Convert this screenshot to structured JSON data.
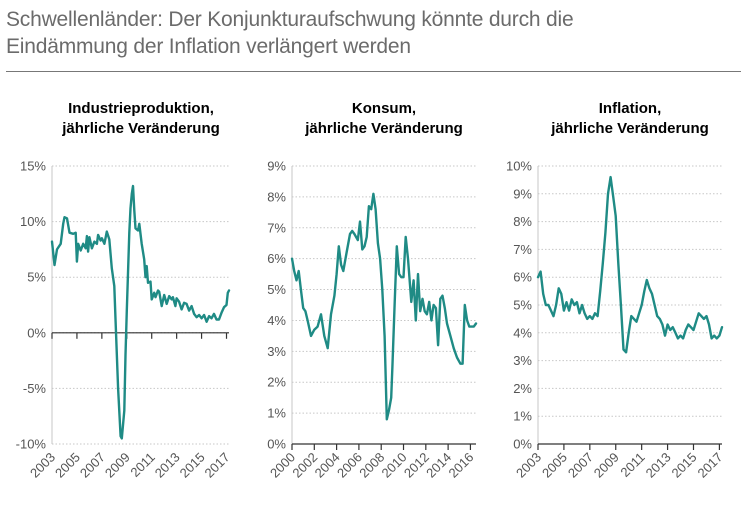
{
  "title_line1": "Schwellenländer: Der Konjunkturaufschwung könnte durch die",
  "title_line2": "Eindämmung der Inflation verlängert werden",
  "colors": {
    "series": "#1f8b85",
    "grid": "#c7c7c7",
    "axis": "#333333",
    "text": "#555555"
  },
  "chart_data": [
    {
      "type": "line",
      "title": [
        "Industrieproduktion,",
        "jährliche Veränderung"
      ],
      "ylim": [
        -10,
        15
      ],
      "yticks": [
        -10,
        -5,
        0,
        5,
        10,
        15
      ],
      "ytick_labels": [
        "-10%",
        "-5%",
        "0%",
        "5%",
        "10%",
        "15%"
      ],
      "xlim": [
        2003,
        2017.2
      ],
      "xticks": [
        2003,
        2005,
        2007,
        2009,
        2011,
        2013,
        2015,
        2017
      ],
      "xtick_labels": [
        "2003",
        "2005",
        "2007",
        "2009",
        "2011",
        "2013",
        "2015",
        "2017"
      ],
      "grid": "horizontal",
      "x_axis_at": 0,
      "series": [
        {
          "x": [
            2003.0,
            2003.2,
            2003.4,
            2003.7,
            2003.9,
            2004.0,
            2004.2,
            2004.4,
            2004.7,
            2004.9,
            2005.0,
            2005.1,
            2005.3,
            2005.5,
            2005.7,
            2005.8,
            2005.9,
            2006.0,
            2006.2,
            2006.4,
            2006.6,
            2006.7,
            2006.9,
            2007.0,
            2007.2,
            2007.4,
            2007.6,
            2007.8,
            2008.0,
            2008.1,
            2008.3,
            2008.5,
            2008.6,
            2008.8,
            2008.9,
            2009.0,
            2009.2,
            2009.3,
            2009.4,
            2009.5,
            2009.6,
            2009.7,
            2009.9,
            2010.0,
            2010.2,
            2010.4,
            2010.5,
            2010.6,
            2010.7,
            2010.9,
            2011.0,
            2011.2,
            2011.3,
            2011.5,
            2011.6,
            2011.8,
            2012.0,
            2012.2,
            2012.4,
            2012.6,
            2012.7,
            2012.9,
            2013.0,
            2013.2,
            2013.4,
            2013.6,
            2013.8,
            2014.0,
            2014.2,
            2014.4,
            2014.6,
            2014.8,
            2015.0,
            2015.2,
            2015.4,
            2015.6,
            2015.8,
            2016.0,
            2016.2,
            2016.4,
            2016.6,
            2016.8,
            2017.0,
            2017.1,
            2017.2
          ],
          "y": [
            8.2,
            6.1,
            7.5,
            8.0,
            9.8,
            10.4,
            10.3,
            9.0,
            8.9,
            9.0,
            6.4,
            8.0,
            7.4,
            8.0,
            7.6,
            8.7,
            7.3,
            8.6,
            7.6,
            8.2,
            8.0,
            8.8,
            8.3,
            8.5,
            8.0,
            9.1,
            8.4,
            5.8,
            4.2,
            1.0,
            -5.0,
            -9.3,
            -9.5,
            -7.0,
            -2.0,
            2.0,
            9.0,
            11.2,
            12.5,
            13.2,
            11.0,
            9.4,
            9.2,
            9.8,
            8.0,
            6.6,
            5.0,
            6.0,
            4.5,
            4.6,
            3.0,
            3.6,
            3.2,
            3.8,
            3.7,
            2.4,
            3.4,
            2.6,
            3.3,
            3.0,
            3.2,
            2.4,
            3.1,
            2.8,
            2.1,
            2.7,
            2.6,
            2.0,
            2.4,
            1.7,
            1.4,
            1.6,
            1.3,
            1.6,
            1.0,
            1.5,
            1.3,
            1.7,
            1.2,
            1.2,
            1.8,
            2.3,
            2.5,
            3.6,
            3.8
          ]
        }
      ]
    },
    {
      "type": "line",
      "title": [
        "Konsum,",
        "jährliche Veränderung"
      ],
      "ylim": [
        0,
        9
      ],
      "yticks": [
        0,
        1,
        2,
        3,
        4,
        5,
        6,
        7,
        8,
        9
      ],
      "ytick_labels": [
        "0%",
        "1%",
        "2%",
        "3%",
        "4%",
        "5%",
        "6%",
        "7%",
        "8%",
        "9%"
      ],
      "xlim": [
        2000,
        2016.5
      ],
      "xticks": [
        2000,
        2002,
        2004,
        2006,
        2008,
        2010,
        2012,
        2014,
        2016
      ],
      "xtick_labels": [
        "2000",
        "2002",
        "2004",
        "2006",
        "2008",
        "2010",
        "2012",
        "2014",
        "2016"
      ],
      "grid": "horizontal",
      "x_axis_at": 0,
      "series": [
        {
          "x": [
            2000.0,
            2000.2,
            2000.4,
            2000.6,
            2000.8,
            2001.0,
            2001.2,
            2001.4,
            2001.7,
            2002.0,
            2002.3,
            2002.6,
            2002.9,
            2003.2,
            2003.5,
            2003.8,
            2004.0,
            2004.2,
            2004.4,
            2004.6,
            2004.9,
            2005.2,
            2005.4,
            2005.6,
            2005.9,
            2006.1,
            2006.3,
            2006.5,
            2006.7,
            2006.9,
            2007.1,
            2007.3,
            2007.5,
            2007.7,
            2007.9,
            2008.1,
            2008.3,
            2008.5,
            2008.7,
            2008.9,
            2009.0,
            2009.2,
            2009.4,
            2009.6,
            2009.8,
            2010.0,
            2010.2,
            2010.4,
            2010.7,
            2010.9,
            2011.1,
            2011.3,
            2011.5,
            2011.7,
            2011.9,
            2012.1,
            2012.3,
            2012.5,
            2012.7,
            2012.9,
            2013.1,
            2013.3,
            2013.5,
            2013.7,
            2013.9,
            2014.2,
            2014.5,
            2014.8,
            2015.1,
            2015.3,
            2015.5,
            2015.7,
            2015.9,
            2016.1,
            2016.3,
            2016.5
          ],
          "y": [
            6.0,
            5.6,
            5.3,
            5.6,
            5.0,
            4.4,
            4.3,
            4.0,
            3.5,
            3.7,
            3.8,
            4.2,
            3.5,
            3.1,
            4.2,
            4.8,
            5.5,
            6.4,
            5.8,
            5.6,
            6.2,
            6.8,
            6.9,
            6.8,
            6.6,
            7.2,
            6.3,
            6.4,
            6.7,
            7.7,
            7.6,
            8.1,
            7.6,
            6.5,
            6.0,
            5.0,
            3.5,
            0.8,
            1.1,
            1.5,
            2.5,
            4.5,
            6.4,
            5.5,
            5.4,
            5.4,
            6.7,
            6.0,
            4.6,
            5.3,
            4.0,
            5.5,
            4.3,
            4.7,
            4.3,
            4.2,
            4.6,
            4.0,
            4.5,
            4.4,
            3.2,
            4.7,
            4.8,
            4.4,
            3.9,
            3.5,
            3.1,
            2.8,
            2.6,
            2.6,
            4.5,
            4.0,
            3.8,
            3.8,
            3.8,
            3.9
          ]
        }
      ]
    },
    {
      "type": "line",
      "title": [
        "Inflation,",
        "jährliche Veränderung"
      ],
      "ylim": [
        0,
        10
      ],
      "yticks": [
        0,
        1,
        2,
        3,
        4,
        5,
        6,
        7,
        8,
        9,
        10
      ],
      "ytick_labels": [
        "0%",
        "1%",
        "2%",
        "3%",
        "4%",
        "5%",
        "6%",
        "7%",
        "8%",
        "9%",
        "10%"
      ],
      "xlim": [
        2003,
        2017.2
      ],
      "xticks": [
        2003,
        2005,
        2007,
        2009,
        2011,
        2013,
        2015,
        2017
      ],
      "xtick_labels": [
        "2003",
        "2005",
        "2007",
        "2009",
        "2011",
        "2013",
        "2015",
        "2017"
      ],
      "grid": "horizontal",
      "x_axis_at": 0,
      "series": [
        {
          "x": [
            2003.0,
            2003.2,
            2003.4,
            2003.6,
            2003.8,
            2004.0,
            2004.2,
            2004.4,
            2004.6,
            2004.8,
            2005.0,
            2005.2,
            2005.4,
            2005.6,
            2005.8,
            2006.0,
            2006.2,
            2006.4,
            2006.6,
            2006.8,
            2007.0,
            2007.2,
            2007.4,
            2007.6,
            2007.8,
            2008.0,
            2008.2,
            2008.4,
            2008.6,
            2008.8,
            2009.0,
            2009.2,
            2009.4,
            2009.6,
            2009.8,
            2010.0,
            2010.2,
            2010.4,
            2010.6,
            2010.8,
            2011.0,
            2011.2,
            2011.4,
            2011.6,
            2011.8,
            2012.0,
            2012.2,
            2012.4,
            2012.6,
            2012.8,
            2013.0,
            2013.2,
            2013.4,
            2013.6,
            2013.8,
            2014.0,
            2014.2,
            2014.4,
            2014.6,
            2014.8,
            2015.0,
            2015.2,
            2015.4,
            2015.6,
            2015.8,
            2016.0,
            2016.2,
            2016.4,
            2016.6,
            2016.8,
            2017.0,
            2017.2
          ],
          "y": [
            6.0,
            6.2,
            5.4,
            5.0,
            5.0,
            4.8,
            4.6,
            5.0,
            5.6,
            5.4,
            4.8,
            5.1,
            4.8,
            5.2,
            5.0,
            5.1,
            4.7,
            5.0,
            4.7,
            4.5,
            4.6,
            4.5,
            4.7,
            4.6,
            5.5,
            6.5,
            7.6,
            9.0,
            9.6,
            8.9,
            8.2,
            6.5,
            5.0,
            3.4,
            3.3,
            4.0,
            4.6,
            4.5,
            4.4,
            4.7,
            5.0,
            5.5,
            5.9,
            5.6,
            5.4,
            5.0,
            4.6,
            4.5,
            4.3,
            3.9,
            4.3,
            4.1,
            4.2,
            4.0,
            3.8,
            3.9,
            3.8,
            4.1,
            4.3,
            4.2,
            4.1,
            4.4,
            4.7,
            4.6,
            4.5,
            4.6,
            4.3,
            3.8,
            3.9,
            3.8,
            3.9,
            4.2
          ]
        }
      ]
    }
  ]
}
